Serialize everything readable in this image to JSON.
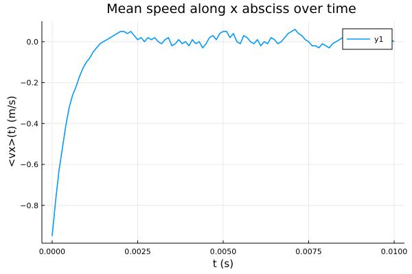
{
  "chart_data": {
    "type": "line",
    "title": "Mean speed along x absciss over time",
    "xlabel": "t (s)",
    "ylabel": "<vx>(t) (m/s)",
    "xlim": [
      -0.0003,
      0.0103
    ],
    "ylim": [
      -0.985,
      0.1
    ],
    "xticks": [
      0.0,
      0.0025,
      0.005,
      0.0075,
      0.01
    ],
    "xtick_labels": [
      "0.0000",
      "0.0025",
      "0.0050",
      "0.0075",
      "0.0100"
    ],
    "yticks": [
      -0.8,
      -0.6,
      -0.4,
      -0.2,
      0.0
    ],
    "ytick_labels": [
      "−0.8",
      "−0.6",
      "−0.4",
      "−0.2",
      "0.0"
    ],
    "grid": true,
    "legend_position": "top-right",
    "series": [
      {
        "name": "y1",
        "color": "#009af9",
        "x": [
          0.0,
          0.0001,
          0.0002,
          0.0003,
          0.0004,
          0.0005,
          0.0006,
          0.0007,
          0.0008,
          0.0009,
          0.001,
          0.0011,
          0.0012,
          0.0013,
          0.0014,
          0.0015,
          0.0016,
          0.0017,
          0.0018,
          0.0019,
          0.002,
          0.0021,
          0.0022,
          0.0023,
          0.0024,
          0.0025,
          0.0026,
          0.0027,
          0.0028,
          0.0029,
          0.003,
          0.0031,
          0.0032,
          0.0033,
          0.0034,
          0.0035,
          0.0036,
          0.0037,
          0.0038,
          0.0039,
          0.004,
          0.0041,
          0.0042,
          0.0043,
          0.0044,
          0.0045,
          0.0046,
          0.0047,
          0.0048,
          0.0049,
          0.005,
          0.0051,
          0.0052,
          0.0053,
          0.0054,
          0.0055,
          0.0056,
          0.0057,
          0.0058,
          0.0059,
          0.006,
          0.0061,
          0.0062,
          0.0063,
          0.0064,
          0.0065,
          0.0066,
          0.0067,
          0.0068,
          0.0069,
          0.007,
          0.0071,
          0.0072,
          0.0073,
          0.0074,
          0.0075,
          0.0076,
          0.0077,
          0.0078,
          0.0079,
          0.008,
          0.0081,
          0.0082,
          0.0083,
          0.0084,
          0.0085,
          0.0086,
          0.0087,
          0.0088,
          0.0089,
          0.009,
          0.0091,
          0.0092,
          0.0093,
          0.0094,
          0.0095,
          0.0096,
          0.0097,
          0.0098,
          0.0099,
          0.01
        ],
        "y": [
          -0.95,
          -0.78,
          -0.63,
          -0.52,
          -0.41,
          -0.32,
          -0.26,
          -0.22,
          -0.17,
          -0.13,
          -0.1,
          -0.08,
          -0.05,
          -0.03,
          -0.01,
          0.0,
          0.01,
          0.02,
          0.03,
          0.04,
          0.05,
          0.05,
          0.04,
          0.05,
          0.03,
          0.01,
          0.02,
          0.0,
          0.02,
          0.01,
          0.02,
          0.0,
          -0.01,
          0.01,
          0.02,
          -0.02,
          -0.01,
          0.01,
          -0.01,
          0.0,
          -0.02,
          0.01,
          -0.01,
          0.0,
          -0.03,
          -0.01,
          0.02,
          0.03,
          0.01,
          0.04,
          0.05,
          0.05,
          0.02,
          0.04,
          0.0,
          -0.01,
          0.03,
          0.02,
          0.0,
          -0.01,
          0.01,
          -0.02,
          0.0,
          -0.01,
          0.02,
          0.01,
          -0.01,
          0.0,
          0.02,
          0.04,
          0.05,
          0.06,
          0.04,
          0.03,
          0.01,
          0.0,
          -0.02,
          -0.02,
          -0.03,
          -0.01,
          -0.02,
          -0.03,
          -0.01,
          0.0,
          0.01,
          0.02,
          0.0,
          0.02,
          -0.01,
          0.01,
          0.02,
          0.01,
          0.0,
          0.02,
          0.01,
          0.0,
          0.02,
          0.01,
          0.0,
          0.01,
          0.0
        ]
      }
    ]
  }
}
